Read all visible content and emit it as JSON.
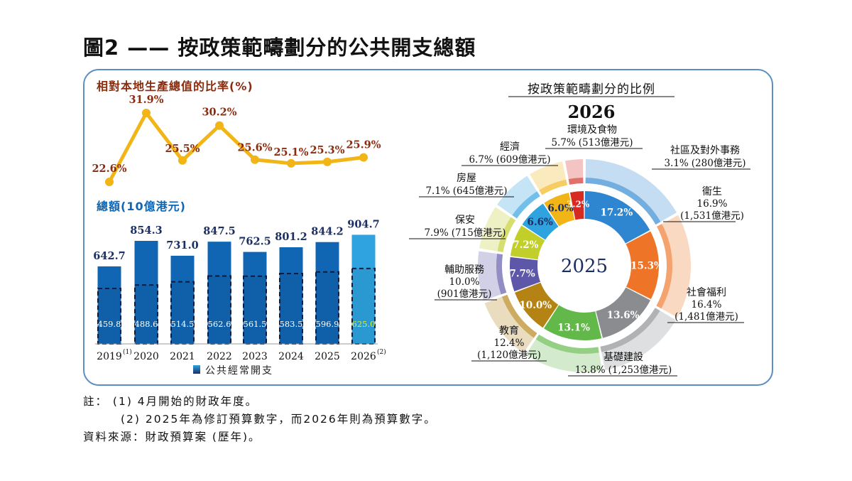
{
  "figure_title": "圖2 —— 按政策範疇劃分的公共開支總額",
  "colors": {
    "gold": "#f2b517",
    "dark_blue": "#1066b3",
    "light_blue": "#2ea3df",
    "gdp_label": "#8b2c0f",
    "frame": "#5b8ec3",
    "navy": "#1c2f63"
  },
  "chart_data": [
    {
      "type": "line",
      "title": "相對本地生產總值的比率(%)",
      "categories": [
        "2019",
        "2020",
        "2021",
        "2022",
        "2023",
        "2024",
        "2025",
        "2026"
      ],
      "values": [
        22.6,
        31.9,
        25.5,
        30.2,
        25.6,
        25.1,
        25.3,
        25.9
      ],
      "labels": [
        "22.6%",
        "31.9%",
        "25.5%",
        "30.2%",
        "25.6%",
        "25.1%",
        "25.3%",
        "25.9%"
      ],
      "ylim": [
        20,
        34
      ]
    },
    {
      "type": "bar",
      "title": "總額(10億港元)",
      "categories": [
        "2019",
        "2020",
        "2021",
        "2022",
        "2023",
        "2024",
        "2025",
        "2026"
      ],
      "category_labels": [
        "2019",
        "2020",
        "2021",
        "2022",
        "2023",
        "2024",
        "2025",
        "2026"
      ],
      "category_notes": [
        "(1)",
        "",
        "",
        "",
        "",
        "",
        "",
        "(2)"
      ],
      "series": [
        {
          "name": "總額",
          "values": [
            642.7,
            854.3,
            731.0,
            847.5,
            762.5,
            801.2,
            844.2,
            904.7
          ],
          "labels": [
            "642.7",
            "854.3",
            "731.0",
            "847.5",
            "762.5",
            "801.2",
            "844.2",
            "904.7"
          ]
        },
        {
          "name": "公共經常開支",
          "values": [
            459.8,
            488.6,
            514.5,
            562.6,
            561.5,
            583.5,
            596.9,
            625.0
          ],
          "labels": [
            "459.8",
            "488.6",
            "514.5",
            "562.6",
            "561.5",
            "583.5",
            "596.9",
            "625.0"
          ]
        }
      ],
      "legend": "公共經常開支",
      "ylim": [
        0,
        1000
      ]
    },
    {
      "type": "pie",
      "title": "按政策範疇劃分的比例",
      "year_outer": "2026",
      "year_inner": "2025",
      "categories": [
        "衞生",
        "社會福利",
        "基礎建設",
        "教育",
        "輔助服務",
        "保安",
        "房屋",
        "經濟",
        "環境及食物",
        "社區及對外事務"
      ],
      "values_2026": [
        16.9,
        16.4,
        13.8,
        12.4,
        10.0,
        7.9,
        7.1,
        6.7,
        5.7,
        3.1
      ],
      "values_2025": [
        17.2,
        15.3,
        13.6,
        13.1,
        10.0,
        7.7,
        7.2,
        6.6,
        6.0,
        3.2
      ],
      "inner_labels": [
        "17.2%",
        "15.3%",
        "13.6%",
        "13.1%",
        "10.0%",
        "7.7%",
        "7.2%",
        "6.6%",
        "6.0%",
        "3.2%"
      ],
      "colors": [
        "#2e86d1",
        "#ee7528",
        "#8a8c8f",
        "#62b848",
        "#b48314",
        "#5c57a8",
        "#c2ce2a",
        "#2ea3df",
        "#f2b517",
        "#d62a23"
      ],
      "outer_labels": [
        {
          "name": "衞生",
          "pct": "16.9%",
          "amount": "(1,531億港元)"
        },
        {
          "name": "社會福利",
          "pct": "16.4%",
          "amount": "(1,481億港元)"
        },
        {
          "name": "基礎建設",
          "pct": "13.8%",
          "amount": "(1,253億港元)"
        },
        {
          "name": "教育",
          "pct": "12.4%",
          "amount": "(1,120億港元)"
        },
        {
          "name": "輔助服務",
          "pct": "10.0%",
          "amount": "(901億港元)"
        },
        {
          "name": "保安",
          "pct": "7.9%",
          "amount": "(715億港元)"
        },
        {
          "name": "房屋",
          "pct": "7.1%",
          "amount": "(645億港元)"
        },
        {
          "name": "經濟",
          "pct": "6.7%",
          "amount": "(609億港元)"
        },
        {
          "name": "環境及食物",
          "pct": "5.7%",
          "amount": "(513億港元)"
        },
        {
          "name": "社區及對外事務",
          "pct": "3.1%",
          "amount": "(280億港元)"
        }
      ]
    }
  ],
  "notes": {
    "note1": "註： (1) 4月開始的財政年度。",
    "note2": "(2) 2025年為修訂預算數字，而2026年則為預算數字。",
    "source": "資料來源：財政預算案 (歷年)。"
  }
}
